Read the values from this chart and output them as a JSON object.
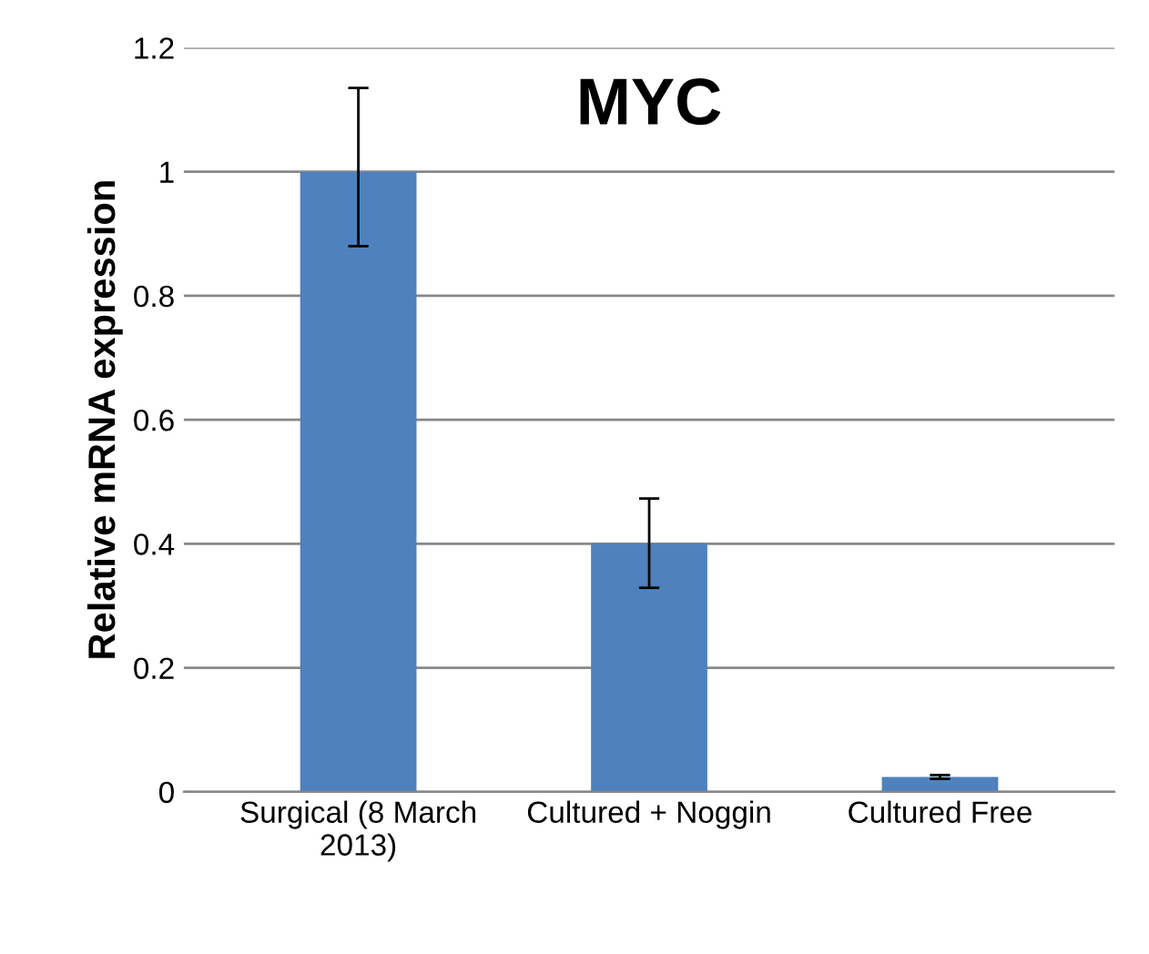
{
  "chart_data": {
    "type": "bar",
    "title": "MYC",
    "ylabel": "Relative mRNA expression",
    "categories": [
      "Surgical (8 March\n2013)",
      "Cultured + Noggin",
      "Cultured Free"
    ],
    "values": [
      1.0,
      0.4,
      0.024
    ],
    "errors": [
      [
        0.88,
        1.135
      ],
      [
        0.329,
        0.473
      ],
      [
        0.021,
        0.027
      ]
    ],
    "color": "#4f81bd",
    "ylim": [
      0,
      1.2
    ],
    "yticks": [
      0,
      0.2,
      0.4,
      0.6,
      0.8,
      1,
      1.2
    ],
    "grid": "y"
  }
}
